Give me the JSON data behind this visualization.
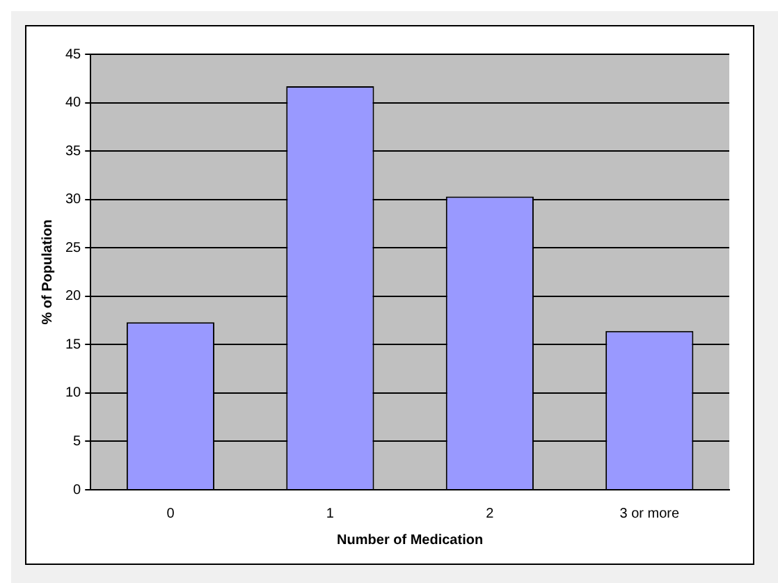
{
  "chart_data": {
    "type": "bar",
    "xlabel": "Number of Medication",
    "ylabel": "% of Population",
    "categories": [
      "0",
      "1",
      "2",
      "3 or more"
    ],
    "values": [
      17.3,
      41.7,
      30.3,
      16.4
    ],
    "color": "#9999ff",
    "ylim": [
      0,
      45
    ],
    "yticks": [
      0,
      5,
      10,
      15,
      20,
      25,
      30,
      35,
      40,
      45
    ],
    "grid": "y",
    "legend": false
  }
}
